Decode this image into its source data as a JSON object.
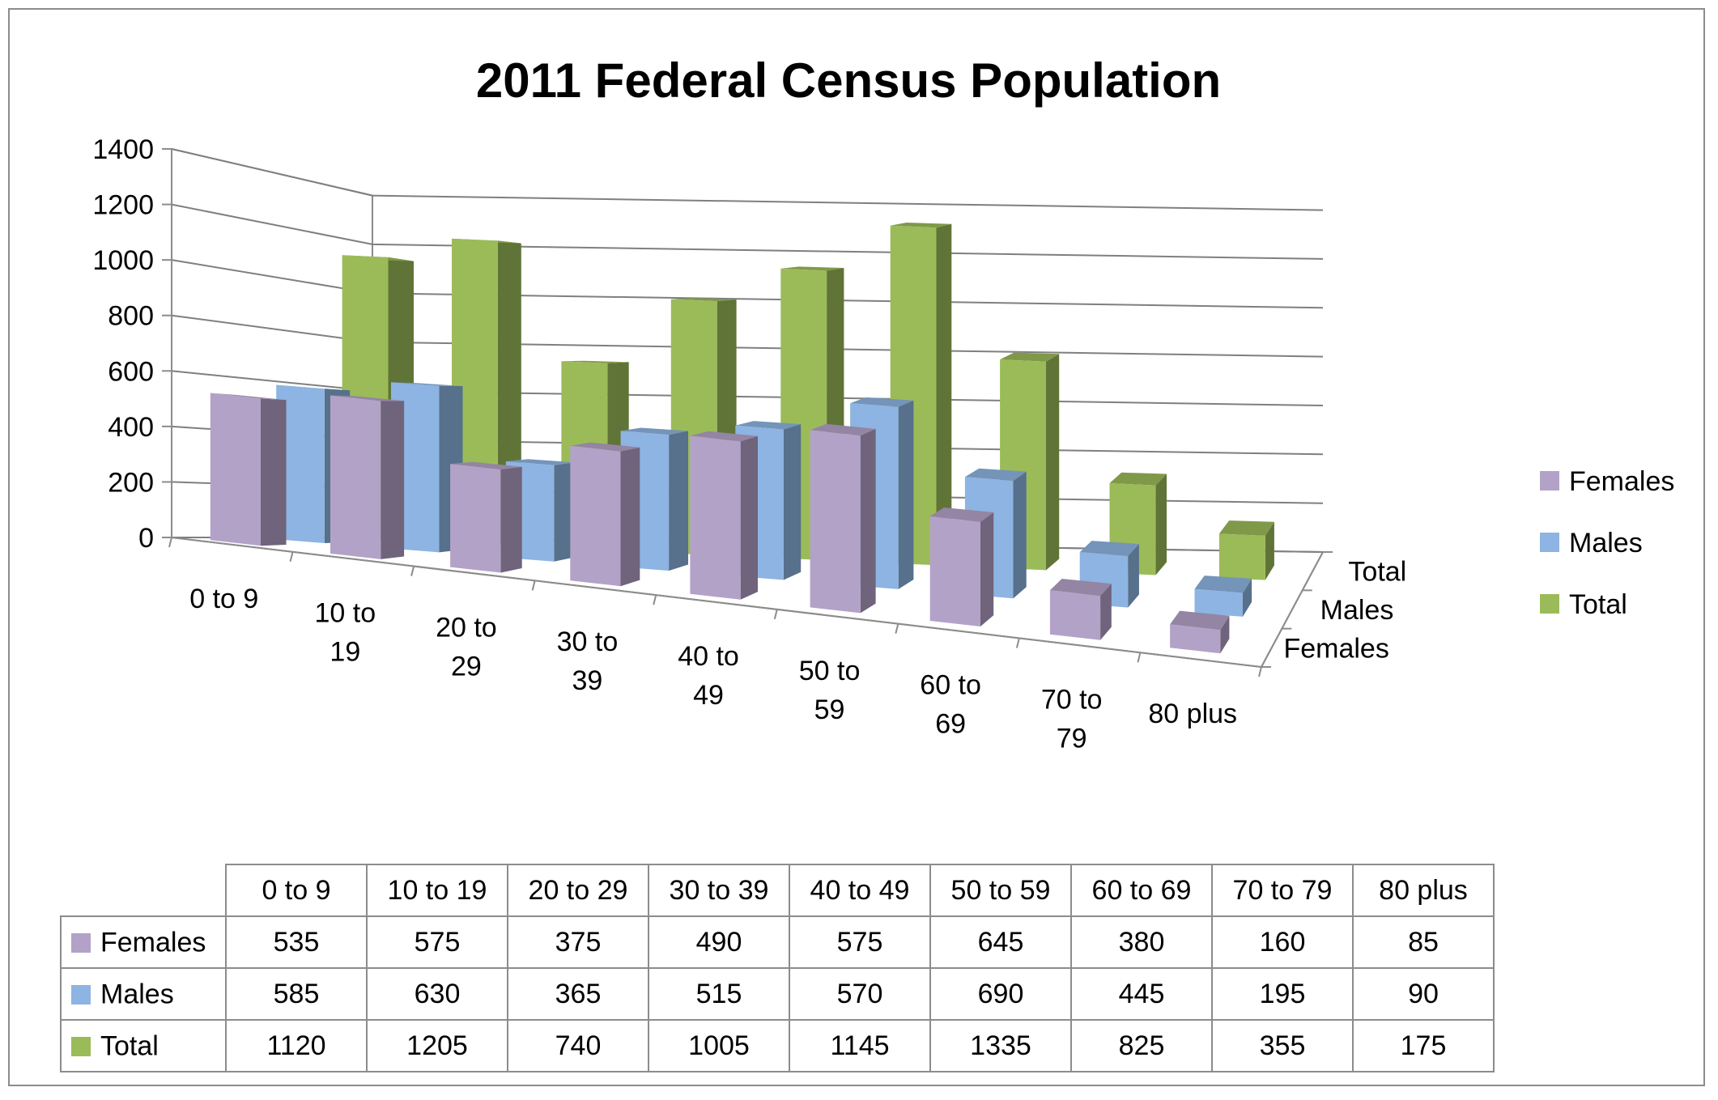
{
  "chart_data": {
    "type": "bar",
    "title": "2011 Federal Census Population",
    "categories": [
      "0 to 9",
      "10 to 19",
      "20 to 29",
      "30 to 39",
      "40 to 49",
      "50 to 59",
      "60 to 69",
      "70 to 79",
      "80 plus"
    ],
    "category_axis_labels": [
      [
        "0 to 9"
      ],
      [
        "10 to",
        "19"
      ],
      [
        "20 to",
        "29"
      ],
      [
        "30 to",
        "39"
      ],
      [
        "40 to",
        "49"
      ],
      [
        "50 to",
        "59"
      ],
      [
        "60 to",
        "69"
      ],
      [
        "70 to",
        "79"
      ],
      [
        "80 plus"
      ]
    ],
    "series": [
      {
        "name": "Females",
        "values": [
          535,
          575,
          375,
          490,
          575,
          645,
          380,
          160,
          85
        ],
        "color": "#b3a2c7"
      },
      {
        "name": "Males",
        "values": [
          585,
          630,
          365,
          515,
          570,
          690,
          445,
          195,
          90
        ],
        "color": "#8db4e2"
      },
      {
        "name": "Total",
        "values": [
          1120,
          1205,
          740,
          1005,
          1145,
          1335,
          825,
          355,
          175
        ],
        "color": "#9bbb59"
      }
    ],
    "ylim": [
      0,
      1400
    ],
    "yticks": [
      0,
      200,
      400,
      600,
      800,
      1000,
      1200,
      1400
    ],
    "depth_axis_labels": [
      "Total",
      "Males",
      "Females"
    ],
    "xlabel": "",
    "ylabel": "",
    "grid": true,
    "legend_position": "right",
    "three_d": true,
    "data_table": true
  }
}
